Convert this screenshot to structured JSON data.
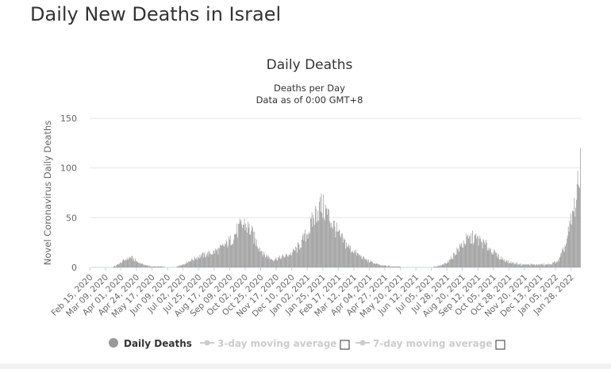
{
  "page": {
    "heading": "Daily New Deaths in Israel"
  },
  "chart_data": {
    "type": "bar",
    "title": "Daily Deaths",
    "subtitle_lines": [
      "Deaths per Day",
      "Data as of 0:00 GMT+8"
    ],
    "ylabel": "Novel Coronavirus Daily Deaths",
    "xlabel": "",
    "ylim": [
      0,
      150
    ],
    "yticks": [
      0,
      50,
      100,
      150
    ],
    "grid": true,
    "bar_color": "#999999",
    "start_date": "2020-02-15",
    "end_date": "2022-02-11",
    "xtick_labels": [
      "Feb 15, 2020",
      "Mar 09, 2020",
      "Apr 01, 2020",
      "Apr 24, 2020",
      "May 17, 2020",
      "Jun 09, 2020",
      "Jul 02, 2020",
      "Jul 25, 2020",
      "Aug 17, 2020",
      "Sep 09, 2020",
      "Oct 02, 2020",
      "Oct 25, 2020",
      "Nov 17, 2020",
      "Dec 10, 2020",
      "Jan 02, 2021",
      "Jan 25, 2021",
      "Feb 17, 2021",
      "Mar 12, 2021",
      "Apr 04, 2021",
      "Apr 27, 2021",
      "May 20, 2021",
      "Jun 12, 2021",
      "Jul 05, 2021",
      "Jul 28, 2021",
      "Aug 20, 2021",
      "Sep 12, 2021",
      "Oct 05, 2021",
      "Oct 28, 2021",
      "Nov 20, 2021",
      "Dec 13, 2021",
      "Jan 05, 2022",
      "Jan 28, 2022"
    ],
    "series": [
      {
        "name": "Daily Deaths",
        "color": "#999999",
        "shape": "bar",
        "keypoints": [
          {
            "x": "2020-02-15",
            "y": 0
          },
          {
            "x": "2020-03-19",
            "y": 0
          },
          {
            "x": "2020-03-28",
            "y": 3
          },
          {
            "x": "2020-04-08",
            "y": 8
          },
          {
            "x": "2020-04-16",
            "y": 10
          },
          {
            "x": "2020-04-24",
            "y": 6
          },
          {
            "x": "2020-05-03",
            "y": 3
          },
          {
            "x": "2020-05-17",
            "y": 1
          },
          {
            "x": "2020-06-20",
            "y": 0
          },
          {
            "x": "2020-07-02",
            "y": 3
          },
          {
            "x": "2020-07-16",
            "y": 8
          },
          {
            "x": "2020-07-25",
            "y": 11
          },
          {
            "x": "2020-08-10",
            "y": 14
          },
          {
            "x": "2020-08-25",
            "y": 18
          },
          {
            "x": "2020-09-09",
            "y": 26
          },
          {
            "x": "2020-09-22",
            "y": 38
          },
          {
            "x": "2020-10-01",
            "y": 44
          },
          {
            "x": "2020-10-10",
            "y": 37
          },
          {
            "x": "2020-10-20",
            "y": 24
          },
          {
            "x": "2020-10-30",
            "y": 13
          },
          {
            "x": "2020-11-12",
            "y": 8
          },
          {
            "x": "2020-11-25",
            "y": 10
          },
          {
            "x": "2020-12-10",
            "y": 14
          },
          {
            "x": "2020-12-22",
            "y": 22
          },
          {
            "x": "2021-01-05",
            "y": 38
          },
          {
            "x": "2021-01-15",
            "y": 55
          },
          {
            "x": "2021-01-22",
            "y": 62
          },
          {
            "x": "2021-01-30",
            "y": 56
          },
          {
            "x": "2021-02-08",
            "y": 45
          },
          {
            "x": "2021-02-20",
            "y": 30
          },
          {
            "x": "2021-03-05",
            "y": 20
          },
          {
            "x": "2021-03-20",
            "y": 12
          },
          {
            "x": "2021-04-04",
            "y": 6
          },
          {
            "x": "2021-04-20",
            "y": 2
          },
          {
            "x": "2021-05-10",
            "y": 1
          },
          {
            "x": "2021-06-01",
            "y": 0
          },
          {
            "x": "2021-07-05",
            "y": 0
          },
          {
            "x": "2021-07-20",
            "y": 2
          },
          {
            "x": "2021-08-01",
            "y": 7
          },
          {
            "x": "2021-08-12",
            "y": 17
          },
          {
            "x": "2021-08-25",
            "y": 27
          },
          {
            "x": "2021-09-05",
            "y": 30
          },
          {
            "x": "2021-09-15",
            "y": 27
          },
          {
            "x": "2021-09-28",
            "y": 20
          },
          {
            "x": "2021-10-12",
            "y": 11
          },
          {
            "x": "2021-10-28",
            "y": 5
          },
          {
            "x": "2021-11-15",
            "y": 3
          },
          {
            "x": "2021-12-13",
            "y": 3
          },
          {
            "x": "2021-12-28",
            "y": 3
          },
          {
            "x": "2022-01-10",
            "y": 7
          },
          {
            "x": "2022-01-20",
            "y": 22
          },
          {
            "x": "2022-01-28",
            "y": 45
          },
          {
            "x": "2022-02-05",
            "y": 70
          },
          {
            "x": "2022-02-09",
            "y": 85
          },
          {
            "x": "2022-02-11",
            "y": 120
          }
        ]
      },
      {
        "name": "3-day moving average",
        "color": "#cccccc",
        "visible": false
      },
      {
        "name": "7-day moving average",
        "color": "#cccccc",
        "visible": false
      }
    ],
    "legend": {
      "placement": "bottom-center",
      "items": [
        "Daily Deaths",
        "3-day moving average",
        "7-day moving average"
      ]
    }
  }
}
